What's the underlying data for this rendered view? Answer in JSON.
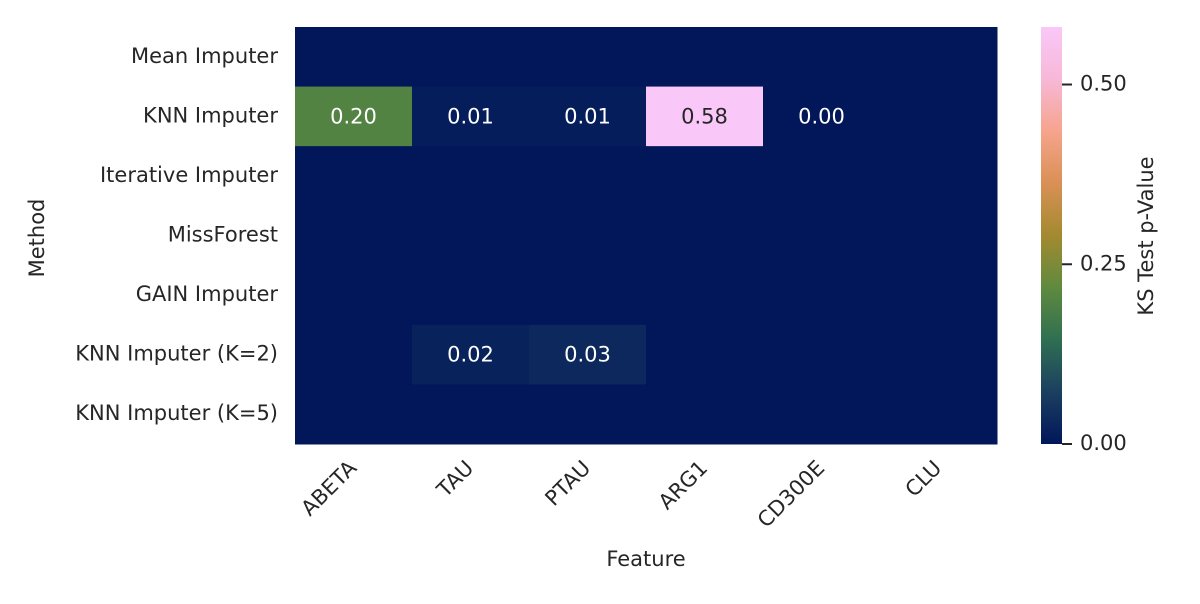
{
  "chart_data": {
    "type": "heatmap",
    "x_label": "Feature",
    "y_label": "Method",
    "categories": [
      "ABETA",
      "TAU",
      "PTAU",
      "ARG1",
      "CD300E",
      "CLU"
    ],
    "rows": [
      "Mean Imputer",
      "KNN Imputer",
      "Iterative Imputer",
      "MissForest",
      "GAIN Imputer",
      "KNN Imputer (K=2)",
      "KNN Imputer (K=5)"
    ],
    "values": [
      [
        0,
        0,
        0,
        0,
        0,
        0
      ],
      [
        0.2,
        0.01,
        0.01,
        0.58,
        0.0,
        0
      ],
      [
        0,
        0,
        0,
        0,
        0,
        0
      ],
      [
        0,
        0,
        0,
        0,
        0,
        0
      ],
      [
        0,
        0,
        0,
        0,
        0,
        0
      ],
      [
        0,
        0.02,
        0.03,
        0,
        0,
        0
      ],
      [
        0,
        0,
        0,
        0,
        0,
        0
      ]
    ],
    "value_labels": [
      [
        null,
        null,
        null,
        null,
        null,
        null
      ],
      [
        "0.20",
        "0.01",
        "0.01",
        "0.58",
        "0.00",
        null
      ],
      [
        null,
        null,
        null,
        null,
        null,
        null
      ],
      [
        null,
        null,
        null,
        null,
        null,
        null
      ],
      [
        null,
        null,
        null,
        null,
        null,
        null
      ],
      [
        null,
        "0.02",
        "0.03",
        null,
        null,
        null
      ],
      [
        null,
        null,
        null,
        null,
        null,
        null
      ]
    ],
    "colorbar_label": "KS Test p-Value",
    "clim": [
      0,
      0.58
    ],
    "cticks": [
      {
        "value": 0,
        "label": "0.00"
      },
      {
        "value": 0.25,
        "label": "0.25"
      },
      {
        "value": 0.5,
        "label": "0.50"
      }
    ],
    "colorscale": [
      "#01175a",
      "#1b3f60",
      "#2f6f52",
      "#5f8a3e",
      "#a38a30",
      "#d99055",
      "#f6a48c",
      "#f7b8d8",
      "#f9c8f8"
    ]
  }
}
